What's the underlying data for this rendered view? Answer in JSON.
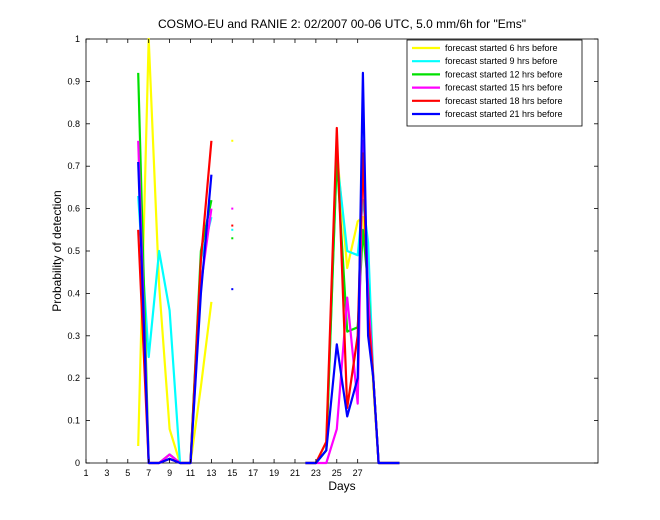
{
  "chart_data": {
    "type": "line",
    "title": "COSMO-EU and RANIE 2: 02/2007 00-06 UTC, 5.0 mm/6h for \"Ems\"",
    "xlabel": "Days",
    "ylabel": "Probability of detection",
    "xlim": [
      1,
      50
    ],
    "ylim": [
      0,
      1
    ],
    "xticks": [
      1,
      3,
      5,
      7,
      9,
      11,
      13,
      15,
      17,
      19,
      21,
      23,
      25,
      27
    ],
    "yticks": [
      0,
      0.1,
      0.2,
      0.3,
      0.4,
      0.5,
      0.6,
      0.7,
      0.8,
      0.9,
      1
    ],
    "ytick_labels": [
      "0",
      "0.1",
      "0.2",
      "0.3",
      "0.4",
      "0.5",
      "0.6",
      "0.7",
      "0.8",
      "0.9",
      "1"
    ],
    "grid": false,
    "legend_position": "top-right",
    "series": [
      {
        "name": "forecast started 6 hrs before",
        "color": "#ffff00",
        "segments": [
          [
            [
              6,
              0.04
            ],
            [
              7,
              1.0
            ],
            [
              8,
              0.42
            ],
            [
              9,
              0.08
            ],
            [
              10,
              0.0
            ],
            [
              11,
              0.0
            ],
            [
              12,
              0.18
            ],
            [
              13,
              0.38
            ]
          ],
          [
            [
              22,
              0.0
            ],
            [
              23,
              0.0
            ],
            [
              24,
              0.05
            ],
            [
              25,
              0.74
            ],
            [
              26,
              0.46
            ],
            [
              27,
              0.57
            ],
            [
              27.5,
              0.58
            ],
            [
              28,
              0.44
            ],
            [
              28.5,
              0.18
            ],
            [
              29,
              0.0
            ],
            [
              31,
              0.0
            ]
          ]
        ],
        "points": [
          [
            15,
            0.76
          ]
        ]
      },
      {
        "name": "forecast started 9 hrs before",
        "color": "#00ffff",
        "segments": [
          [
            [
              6,
              0.63
            ],
            [
              7,
              0.25
            ],
            [
              8,
              0.5
            ],
            [
              9,
              0.36
            ],
            [
              10,
              0.0
            ],
            [
              11,
              0.0
            ],
            [
              12,
              0.48
            ],
            [
              13,
              0.58
            ]
          ],
          [
            [
              22,
              0.0
            ],
            [
              23,
              0.0
            ],
            [
              24,
              0.03
            ],
            [
              25,
              0.72
            ],
            [
              26,
              0.5
            ],
            [
              27,
              0.49
            ],
            [
              27.5,
              0.62
            ],
            [
              28,
              0.52
            ],
            [
              28.5,
              0.2
            ],
            [
              29,
              0.0
            ],
            [
              31,
              0.0
            ]
          ]
        ],
        "points": [
          [
            15,
            0.55
          ]
        ]
      },
      {
        "name": "forecast started 12 hrs before",
        "color": "#00e000",
        "segments": [
          [
            [
              6,
              0.92
            ],
            [
              7,
              0.0
            ],
            [
              8,
              0.0
            ],
            [
              9,
              0.02
            ],
            [
              10,
              0.0
            ],
            [
              11,
              0.0
            ],
            [
              12,
              0.5
            ],
            [
              13,
              0.62
            ]
          ],
          [
            [
              22,
              0.0
            ],
            [
              23,
              0.0
            ],
            [
              24,
              0.03
            ],
            [
              25,
              0.72
            ],
            [
              26,
              0.31
            ],
            [
              27,
              0.32
            ],
            [
              27.5,
              0.55
            ],
            [
              28,
              0.42
            ],
            [
              28.5,
              0.2
            ],
            [
              29,
              0.0
            ],
            [
              31,
              0.0
            ]
          ]
        ],
        "points": [
          [
            15,
            0.53
          ]
        ]
      },
      {
        "name": "forecast started 15 hrs before",
        "color": "#ff00ff",
        "segments": [
          [
            [
              6,
              0.76
            ],
            [
              7,
              0.0
            ],
            [
              8,
              0.0
            ],
            [
              9,
              0.02
            ],
            [
              10,
              0.0
            ],
            [
              11,
              0.0
            ],
            [
              12,
              0.42
            ],
            [
              13,
              0.6
            ]
          ],
          [
            [
              22,
              0.0
            ],
            [
              23,
              0.0
            ],
            [
              24,
              0.0
            ],
            [
              25,
              0.08
            ],
            [
              26,
              0.39
            ],
            [
              27,
              0.14
            ],
            [
              27.5,
              0.76
            ],
            [
              28,
              0.4
            ],
            [
              28.5,
              0.2
            ],
            [
              29,
              0.0
            ],
            [
              31,
              0.0
            ]
          ]
        ],
        "points": [
          [
            15,
            0.6
          ]
        ]
      },
      {
        "name": "forecast started 18 hrs before",
        "color": "#ff0000",
        "segments": [
          [
            [
              6,
              0.55
            ],
            [
              7,
              0.0
            ],
            [
              8,
              0.0
            ],
            [
              9,
              0.01
            ],
            [
              10,
              0.0
            ],
            [
              11,
              0.0
            ],
            [
              12,
              0.48
            ],
            [
              13,
              0.76
            ]
          ],
          [
            [
              22,
              0.0
            ],
            [
              23,
              0.0
            ],
            [
              24,
              0.05
            ],
            [
              25,
              0.79
            ],
            [
              26,
              0.13
            ],
            [
              27,
              0.3
            ],
            [
              27.5,
              0.73
            ],
            [
              28,
              0.35
            ],
            [
              28.5,
              0.2
            ],
            [
              29,
              0.0
            ],
            [
              31,
              0.0
            ]
          ]
        ],
        "points": [
          [
            15,
            0.56
          ]
        ]
      },
      {
        "name": "forecast started 21 hrs before",
        "color": "#0000ff",
        "segments": [
          [
            [
              6,
              0.71
            ],
            [
              7,
              0.0
            ],
            [
              8,
              0.0
            ],
            [
              9,
              0.01
            ],
            [
              10,
              0.0
            ],
            [
              11,
              0.0
            ],
            [
              12,
              0.4
            ],
            [
              13,
              0.68
            ]
          ],
          [
            [
              22,
              0.0
            ],
            [
              23,
              0.0
            ],
            [
              24,
              0.03
            ],
            [
              25,
              0.28
            ],
            [
              26,
              0.11
            ],
            [
              27,
              0.2
            ],
            [
              27.5,
              0.92
            ],
            [
              28,
              0.3
            ],
            [
              28.5,
              0.2
            ],
            [
              29,
              0.0
            ],
            [
              31,
              0.0
            ]
          ]
        ],
        "points": [
          [
            15,
            0.41
          ]
        ]
      }
    ]
  }
}
